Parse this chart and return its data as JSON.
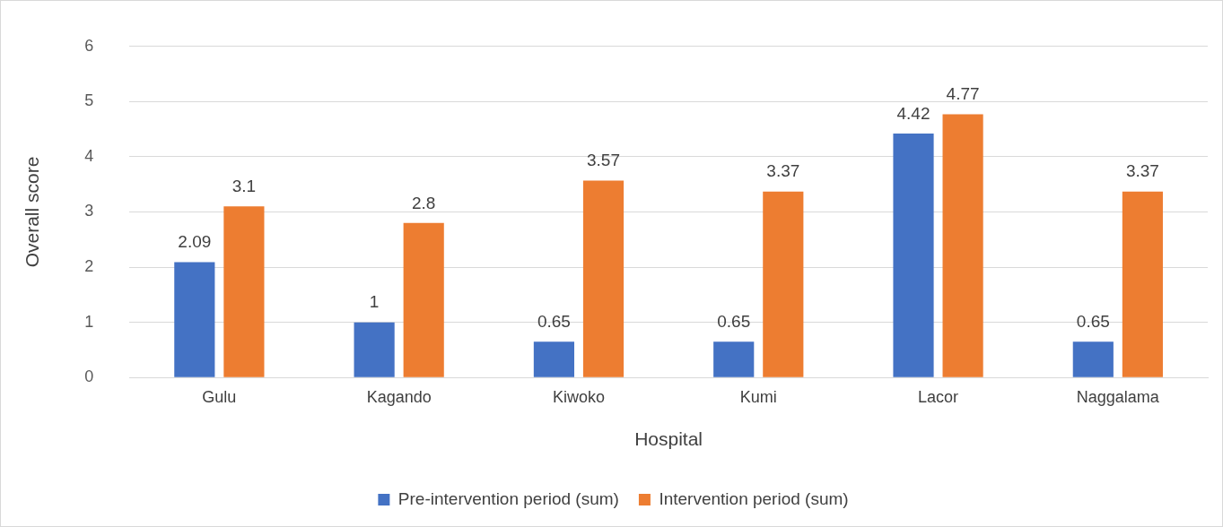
{
  "chart_data": {
    "type": "bar",
    "xlabel": "Hospital",
    "ylabel": "Overall score",
    "categories": [
      "Gulu",
      "Kagando",
      "Kiwoko",
      "Kumi",
      "Lacor",
      "Naggalama"
    ],
    "series": [
      {
        "name": "Pre-intervention period (sum)",
        "color": "#4472c4",
        "values": [
          2.09,
          1,
          0.65,
          0.65,
          4.42,
          0.65
        ]
      },
      {
        "name": "Intervention period (sum)",
        "color": "#ed7d31",
        "values": [
          3.1,
          2.8,
          3.57,
          3.37,
          4.77,
          3.37
        ]
      }
    ],
    "ylim": [
      0,
      6
    ],
    "yticks": [
      0,
      1,
      2,
      3,
      4,
      5,
      6
    ],
    "grid": "y",
    "legend": "bottom",
    "data_labels": true
  }
}
